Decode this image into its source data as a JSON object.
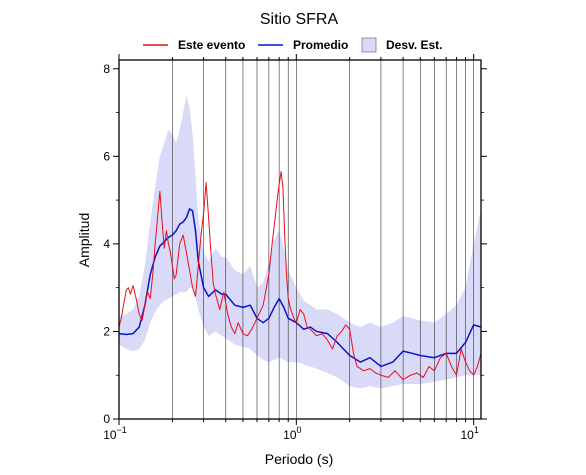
{
  "chart_data": {
    "type": "line",
    "title": "Sitio SFRA",
    "xlabel": "Periodo (s)",
    "ylabel": "Amplitud",
    "x_scale": "log",
    "xlim": [
      0.1,
      11
    ],
    "ylim": [
      0,
      8.2
    ],
    "grid": true,
    "legend_position": "top",
    "x_tick_labels": [
      {
        "base": "10",
        "exp": "−1",
        "value": 0.1
      },
      {
        "base": "10",
        "exp": "0",
        "value": 1
      },
      {
        "base": "10",
        "exp": "1",
        "value": 10
      }
    ],
    "y_ticks": [
      0,
      2,
      4,
      6,
      8
    ],
    "legend": {
      "event_label": "Este evento",
      "mean_label": "Promedio",
      "std_label": "Desv. Est."
    },
    "colors": {
      "event": "#e8101a",
      "mean": "#0a14c8",
      "std_band": "#d9d9f8",
      "grid": "#333333"
    },
    "series": [
      {
        "name": "Promedio",
        "x": [
          0.1,
          0.11,
          0.12,
          0.13,
          0.14,
          0.15,
          0.16,
          0.17,
          0.18,
          0.19,
          0.2,
          0.21,
          0.22,
          0.23,
          0.24,
          0.25,
          0.26,
          0.27,
          0.28,
          0.3,
          0.32,
          0.35,
          0.38,
          0.4,
          0.45,
          0.5,
          0.55,
          0.6,
          0.65,
          0.7,
          0.75,
          0.8,
          0.85,
          0.9,
          1.0,
          1.1,
          1.2,
          1.3,
          1.5,
          1.7,
          2.0,
          2.3,
          2.6,
          3.0,
          3.5,
          4.0,
          4.5,
          5.0,
          6.0,
          7.0,
          8.0,
          9.0,
          10.0,
          11.0
        ],
        "y": [
          1.95,
          1.93,
          1.95,
          2.1,
          2.6,
          3.3,
          3.7,
          3.95,
          4.05,
          4.15,
          4.2,
          4.3,
          4.45,
          4.5,
          4.6,
          4.8,
          4.75,
          4.3,
          3.6,
          3.0,
          2.8,
          2.95,
          2.85,
          2.85,
          2.6,
          2.55,
          2.6,
          2.3,
          2.2,
          2.3,
          2.55,
          2.75,
          2.55,
          2.3,
          2.2,
          2.05,
          2.1,
          2.0,
          1.95,
          1.75,
          1.45,
          1.3,
          1.4,
          1.2,
          1.3,
          1.55,
          1.5,
          1.45,
          1.4,
          1.5,
          1.5,
          1.75,
          2.15,
          2.1
        ]
      },
      {
        "name": "Este evento",
        "x": [
          0.1,
          0.103,
          0.106,
          0.11,
          0.113,
          0.116,
          0.12,
          0.125,
          0.13,
          0.135,
          0.14,
          0.145,
          0.15,
          0.155,
          0.16,
          0.165,
          0.17,
          0.175,
          0.18,
          0.185,
          0.19,
          0.195,
          0.2,
          0.205,
          0.21,
          0.22,
          0.23,
          0.24,
          0.25,
          0.26,
          0.27,
          0.28,
          0.29,
          0.3,
          0.31,
          0.32,
          0.33,
          0.34,
          0.35,
          0.37,
          0.39,
          0.41,
          0.43,
          0.45,
          0.47,
          0.5,
          0.53,
          0.56,
          0.6,
          0.65,
          0.7,
          0.73,
          0.76,
          0.79,
          0.82,
          0.84,
          0.86,
          0.88,
          0.9,
          0.93,
          0.97,
          1.0,
          1.05,
          1.1,
          1.15,
          1.2,
          1.3,
          1.4,
          1.5,
          1.6,
          1.7,
          1.8,
          1.9,
          2.0,
          2.1,
          2.2,
          2.4,
          2.6,
          2.8,
          3.0,
          3.3,
          3.6,
          4.0,
          4.4,
          4.8,
          5.2,
          5.6,
          6.0,
          6.5,
          7.0,
          7.5,
          8.0,
          8.5,
          9.0,
          9.5,
          10.0,
          10.5,
          11.0
        ],
        "y": [
          2.1,
          2.3,
          2.6,
          2.95,
          3.0,
          2.85,
          3.05,
          2.75,
          2.4,
          2.25,
          2.6,
          2.9,
          2.75,
          3.3,
          4.0,
          4.6,
          5.2,
          4.5,
          3.9,
          4.3,
          4.0,
          3.8,
          3.5,
          3.2,
          3.3,
          4.0,
          4.2,
          3.8,
          3.4,
          3.0,
          2.8,
          3.5,
          4.2,
          4.7,
          5.4,
          4.6,
          3.8,
          3.1,
          2.85,
          2.5,
          2.9,
          2.4,
          2.1,
          1.95,
          2.2,
          1.95,
          1.9,
          2.05,
          2.3,
          2.6,
          3.3,
          4.0,
          4.6,
          5.2,
          5.65,
          5.3,
          4.2,
          3.3,
          2.75,
          2.5,
          2.3,
          2.2,
          2.5,
          2.4,
          2.1,
          2.05,
          1.9,
          1.95,
          1.8,
          1.6,
          1.9,
          2.0,
          2.15,
          2.05,
          1.5,
          1.2,
          1.1,
          1.15,
          1.05,
          1.0,
          0.95,
          1.1,
          0.9,
          1.0,
          1.05,
          0.95,
          1.2,
          1.1,
          1.4,
          1.5,
          1.2,
          1.0,
          1.6,
          1.3,
          1.1,
          1.0,
          1.2,
          1.5
        ]
      }
    ],
    "std_band": {
      "name": "Desv. Est.",
      "x": [
        0.1,
        0.11,
        0.12,
        0.13,
        0.14,
        0.15,
        0.16,
        0.17,
        0.18,
        0.19,
        0.2,
        0.21,
        0.22,
        0.23,
        0.24,
        0.25,
        0.26,
        0.27,
        0.28,
        0.3,
        0.32,
        0.35,
        0.38,
        0.4,
        0.45,
        0.5,
        0.55,
        0.6,
        0.65,
        0.7,
        0.75,
        0.8,
        0.85,
        0.9,
        1.0,
        1.1,
        1.2,
        1.3,
        1.5,
        1.7,
        2.0,
        2.3,
        2.6,
        3.0,
        3.5,
        4.0,
        4.5,
        5.0,
        6.0,
        7.0,
        8.0,
        9.0,
        10.0,
        11.0
      ],
      "upper": [
        2.35,
        2.4,
        2.5,
        2.8,
        3.5,
        4.5,
        5.3,
        6.0,
        6.3,
        6.6,
        6.5,
        6.3,
        6.6,
        7.0,
        7.4,
        7.1,
        6.5,
        5.6,
        4.6,
        3.8,
        3.6,
        3.9,
        3.7,
        3.7,
        3.4,
        3.3,
        3.5,
        3.0,
        3.1,
        3.6,
        4.1,
        4.3,
        3.9,
        3.4,
        3.0,
        2.7,
        2.6,
        2.5,
        2.5,
        2.4,
        2.2,
        2.1,
        2.2,
        2.1,
        2.2,
        2.35,
        2.3,
        2.25,
        2.2,
        2.4,
        2.6,
        3.0,
        4.0,
        4.8
      ],
      "lower": [
        1.7,
        1.6,
        1.55,
        1.6,
        1.8,
        2.2,
        2.45,
        2.6,
        2.7,
        2.75,
        2.8,
        2.85,
        2.9,
        2.9,
        2.9,
        3.0,
        3.0,
        2.8,
        2.5,
        2.1,
        1.9,
        2.0,
        1.9,
        1.85,
        1.7,
        1.65,
        1.6,
        1.45,
        1.35,
        1.3,
        1.35,
        1.4,
        1.35,
        1.3,
        1.3,
        1.25,
        1.2,
        1.15,
        1.05,
        0.95,
        0.75,
        0.7,
        0.75,
        0.7,
        0.75,
        0.8,
        0.8,
        0.8,
        0.85,
        0.9,
        0.95,
        1.0,
        1.0,
        1.0
      ]
    }
  }
}
